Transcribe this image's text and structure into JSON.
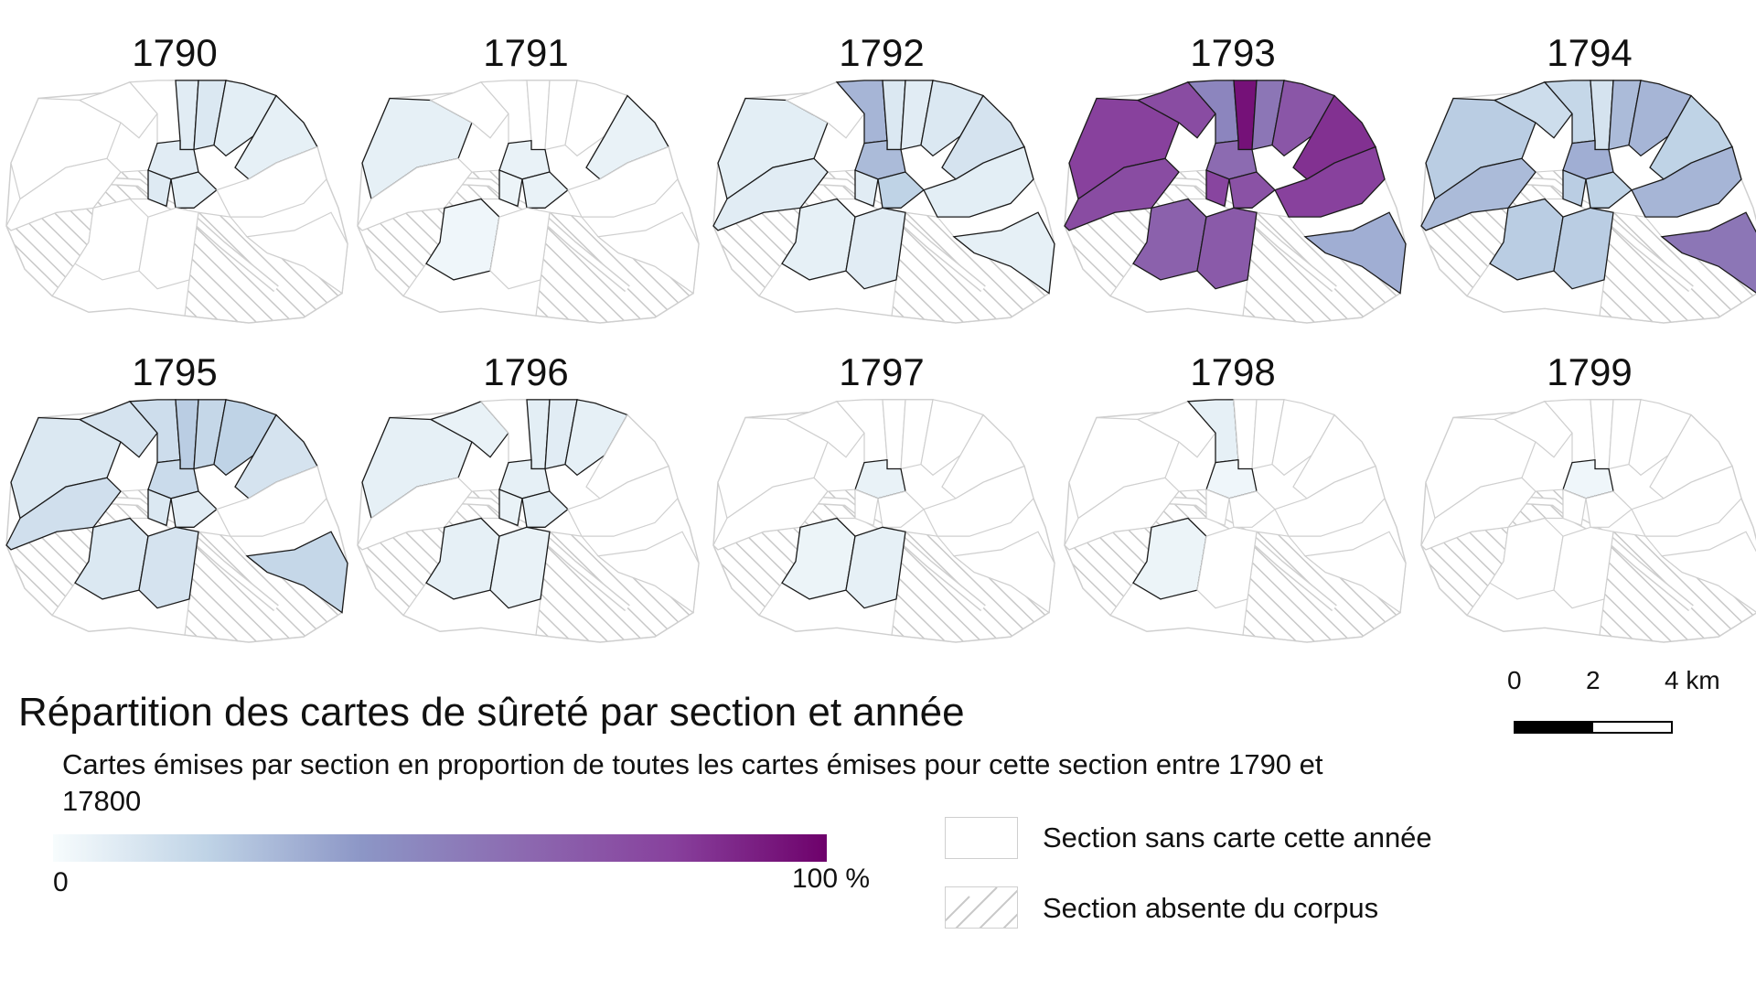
{
  "panels": [
    {
      "year": "1790",
      "shares": [
        0,
        0,
        0,
        0.08,
        0.1,
        0.07,
        0.06,
        0.08,
        0.09,
        0.07,
        0,
        0,
        0,
        0,
        0
      ]
    },
    {
      "year": "1791",
      "shares": [
        0.06,
        0,
        0,
        0,
        0,
        0,
        0.05,
        0.05,
        0.04,
        0.05,
        0,
        0.03,
        0,
        0,
        0
      ]
    },
    {
      "year": "1792",
      "shares": [
        0.07,
        0,
        0.3,
        0.1,
        0.08,
        0.1,
        0.12,
        0.28,
        0.08,
        0.2,
        0.08,
        0.06,
        0.07,
        0.08,
        0.06
      ]
    },
    {
      "year": "1793",
      "shares": [
        0.8,
        0.75,
        0.48,
        0.95,
        0.55,
        0.7,
        0.85,
        0.6,
        0.78,
        0.72,
        0.75,
        0.65,
        0.8,
        0.68,
        0.32
      ]
    },
    {
      "year": "1794",
      "shares": [
        0.22,
        0.15,
        0.18,
        0.12,
        0.28,
        0.3,
        0.2,
        0.32,
        0.22,
        0.2,
        0.28,
        0.22,
        0.3,
        0.22,
        0.55
      ]
    },
    {
      "year": "1795",
      "shares": [
        0.1,
        0.12,
        0.15,
        0.22,
        0.18,
        0.2,
        0.12,
        0.16,
        0.1,
        0.08,
        0.14,
        0.1,
        0,
        0.12,
        0.18
      ]
    },
    {
      "year": "1796",
      "shares": [
        0.06,
        0.05,
        0,
        0.07,
        0.08,
        0.06,
        0,
        0.06,
        0.05,
        0.07,
        0,
        0.06,
        0,
        0.05,
        0
      ]
    },
    {
      "year": "1797",
      "shares": [
        0,
        0,
        0,
        0,
        0,
        0,
        0,
        0.05,
        0,
        0,
        0,
        0.04,
        0,
        0.06,
        0
      ]
    },
    {
      "year": "1798",
      "shares": [
        0,
        0,
        0.06,
        0,
        0,
        0,
        0,
        0.03,
        0,
        0,
        0,
        0.04,
        0,
        0,
        0
      ]
    },
    {
      "year": "1799",
      "shares": [
        0,
        0,
        0,
        0,
        0,
        0,
        0,
        0.03,
        0,
        0,
        0,
        0,
        0,
        0,
        0
      ]
    }
  ],
  "title": "Répartition des cartes de sûreté par section et année",
  "subtitle": "Cartes émises par section en proportion de toutes les cartes émises pour cette section entre 1790 et 17800",
  "color_scale": {
    "min_label": "0",
    "max_label": "100 %",
    "colors": [
      "#f7fcfd",
      "#bfd3e6",
      "#8c96c6",
      "#8c6bb1",
      "#88419d",
      "#6e016b"
    ]
  },
  "legend": {
    "empty_label": "Section sans carte cette année",
    "hatched_label": "Section absente du corpus"
  },
  "scale": {
    "labels": [
      "0",
      "2",
      "4 km"
    ]
  },
  "colors": {
    "outline": "#cfcfcf",
    "section_border": "#1a1a1a",
    "hatch": "#c8c8c8"
  }
}
